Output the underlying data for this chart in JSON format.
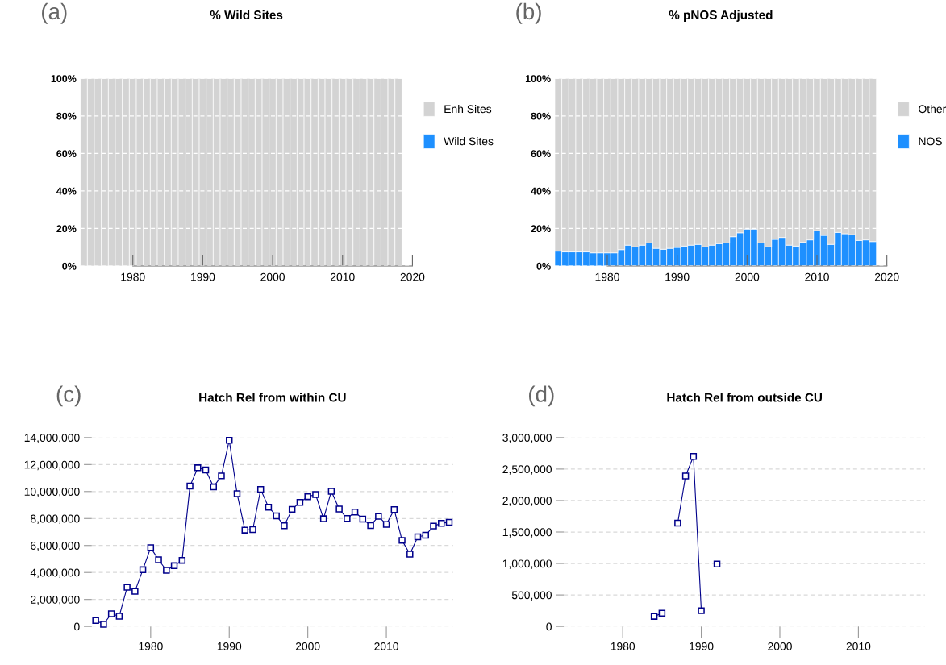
{
  "chart_data": [
    {
      "type": "bar",
      "title": "% Wild Sites",
      "annotations": [
        "(a)"
      ],
      "stacked": true,
      "legend": "right",
      "grid": "y",
      "x": [
        1973,
        1974,
        1975,
        1976,
        1977,
        1978,
        1979,
        1980,
        1981,
        1982,
        1983,
        1984,
        1985,
        1986,
        1987,
        1988,
        1989,
        1990,
        1991,
        1992,
        1993,
        1994,
        1995,
        1996,
        1997,
        1998,
        1999,
        2000,
        2001,
        2002,
        2003,
        2004,
        2005,
        2006,
        2007,
        2008,
        2009,
        2010,
        2011,
        2012,
        2013,
        2014,
        2015,
        2016,
        2017,
        2018
      ],
      "series": [
        {
          "name": "Wild Sites",
          "color": "#1e90ff",
          "values": [
            0,
            0,
            0,
            0,
            0,
            0,
            0,
            0,
            0,
            0,
            0,
            0,
            0,
            0,
            0,
            0,
            0,
            0,
            0,
            0,
            0,
            0,
            0,
            0,
            0,
            0,
            0,
            0,
            0,
            0,
            0,
            0,
            0,
            0,
            0,
            0,
            0,
            0,
            0,
            0,
            0,
            0,
            0,
            0,
            0,
            0
          ]
        },
        {
          "name": "Enh Sites",
          "color": "#d3d3d3",
          "values": [
            100,
            100,
            100,
            100,
            100,
            100,
            100,
            100,
            100,
            100,
            100,
            100,
            100,
            100,
            100,
            100,
            100,
            100,
            100,
            100,
            100,
            100,
            100,
            100,
            100,
            100,
            100,
            100,
            100,
            100,
            100,
            100,
            100,
            100,
            100,
            100,
            100,
            100,
            100,
            100,
            100,
            100,
            100,
            100,
            100,
            100
          ]
        }
      ],
      "xlim": [
        1972.5,
        2020
      ],
      "xticks": [
        1980,
        1990,
        2000,
        2010,
        2020
      ],
      "ylim": [
        0,
        100
      ],
      "yticks": [
        {
          "value": 0,
          "label": "0%"
        },
        {
          "value": 20,
          "label": "20%"
        },
        {
          "value": 40,
          "label": "40%"
        },
        {
          "value": 60,
          "label": "60%"
        },
        {
          "value": 80,
          "label": "80%"
        },
        {
          "value": 100,
          "label": "100%"
        }
      ]
    },
    {
      "type": "bar",
      "title": "% pNOS Adjusted",
      "annotations": [
        "(b)"
      ],
      "stacked": true,
      "legend": "right",
      "grid": "y",
      "x": [
        1973,
        1974,
        1975,
        1976,
        1977,
        1978,
        1979,
        1980,
        1981,
        1982,
        1983,
        1984,
        1985,
        1986,
        1987,
        1988,
        1989,
        1990,
        1991,
        1992,
        1993,
        1994,
        1995,
        1996,
        1997,
        1998,
        1999,
        2000,
        2001,
        2002,
        2003,
        2004,
        2005,
        2006,
        2007,
        2008,
        2009,
        2010,
        2011,
        2012,
        2013,
        2014,
        2015,
        2016,
        2017,
        2018
      ],
      "series": [
        {
          "name": "NOS",
          "color": "#1e90ff",
          "values": [
            7.9,
            7.5,
            7.5,
            7.5,
            7.5,
            7.0,
            7.0,
            7.0,
            7.0,
            8.7,
            11.1,
            10.2,
            11.1,
            12.3,
            9.4,
            8.9,
            9.4,
            9.9,
            10.6,
            11.1,
            11.5,
            10.2,
            11.1,
            11.9,
            12.3,
            15.6,
            17.7,
            19.7,
            19.7,
            12.3,
            10.2,
            14.2,
            15.2,
            11.1,
            10.6,
            12.6,
            13.9,
            18.9,
            16.3,
            11.5,
            17.9,
            17.2,
            16.7,
            13.6,
            13.9,
            13.0
          ]
        },
        {
          "name": "Other",
          "color": "#d3d3d3",
          "values": [
            92.1,
            92.5,
            92.5,
            92.5,
            92.5,
            93.0,
            93.0,
            93.0,
            93.0,
            91.3,
            88.9,
            89.8,
            88.9,
            87.7,
            90.6,
            91.1,
            90.6,
            90.1,
            89.4,
            88.9,
            88.5,
            89.8,
            88.9,
            88.1,
            87.7,
            84.4,
            82.3,
            80.3,
            80.3,
            87.7,
            89.8,
            85.8,
            84.8,
            88.9,
            89.4,
            87.4,
            86.1,
            81.1,
            83.7,
            88.5,
            82.1,
            82.8,
            83.3,
            86.4,
            86.1,
            87.0
          ]
        }
      ],
      "xlim": [
        1972.5,
        2020
      ],
      "xticks": [
        1980,
        1990,
        2000,
        2010,
        2020
      ],
      "ylim": [
        0,
        100
      ],
      "yticks": [
        {
          "value": 0,
          "label": "0%"
        },
        {
          "value": 20,
          "label": "20%"
        },
        {
          "value": 40,
          "label": "40%"
        },
        {
          "value": 60,
          "label": "60%"
        },
        {
          "value": 80,
          "label": "80%"
        },
        {
          "value": 100,
          "label": "100%"
        }
      ]
    },
    {
      "type": "line",
      "title": "Hatch Rel from within CU",
      "annotations": [
        "(c)"
      ],
      "grid": "y",
      "marker": "square",
      "x": [
        1973,
        1974,
        1975,
        1976,
        1977,
        1978,
        1979,
        1980,
        1981,
        1982,
        1983,
        1984,
        1985,
        1986,
        1987,
        1988,
        1989,
        1990,
        1991,
        1992,
        1993,
        1994,
        1995,
        1996,
        1997,
        1998,
        1999,
        2000,
        2001,
        2002,
        2003,
        2004,
        2005,
        2006,
        2007,
        2008,
        2009,
        2010,
        2011,
        2012,
        2013,
        2014,
        2015,
        2016,
        2017,
        2018
      ],
      "series": [
        {
          "color": "#00008b",
          "values": [
            440000,
            160000,
            940000,
            760000,
            2900000,
            2600000,
            4200000,
            5840000,
            4940000,
            4160000,
            4500000,
            4900000,
            10400000,
            11760000,
            11600000,
            10340000,
            11160000,
            13800000,
            9840000,
            7140000,
            7180000,
            10160000,
            8840000,
            8200000,
            7460000,
            8680000,
            9200000,
            9620000,
            9780000,
            7980000,
            10020000,
            8700000,
            8000000,
            8480000,
            7960000,
            7480000,
            8160000,
            7560000,
            8660000,
            6380000,
            5360000,
            6640000,
            6760000,
            7440000,
            7640000,
            7720000
          ]
        }
      ],
      "xlim": [
        1972.5,
        2018.5
      ],
      "xticks": [
        1980,
        1990,
        2000,
        2010
      ],
      "ylim": [
        0,
        14000000
      ],
      "yticks": [
        {
          "value": 0,
          "label": "0"
        },
        {
          "value": 2000000,
          "label": "2,000,000"
        },
        {
          "value": 4000000,
          "label": "4,000,000"
        },
        {
          "value": 6000000,
          "label": "6,000,000"
        },
        {
          "value": 8000000,
          "label": "8,000,000"
        },
        {
          "value": 10000000,
          "label": "10,000,000"
        },
        {
          "value": 12000000,
          "label": "12,000,000"
        },
        {
          "value": 14000000,
          "label": "14,000,000"
        }
      ]
    },
    {
      "type": "line",
      "title": "Hatch Rel from outside CU",
      "annotations": [
        "(d)"
      ],
      "grid": "y",
      "marker": "square",
      "x": [
        1984,
        1985,
        1986,
        1987,
        1988,
        1989,
        1990,
        1991,
        1992
      ],
      "series": [
        {
          "color": "#00008b",
          "values": [
            160000,
            210000,
            null,
            1640000,
            2390000,
            2700000,
            250000,
            null,
            990000
          ]
        }
      ],
      "xlim": [
        1972.5,
        2018.5
      ],
      "xticks": [
        1980,
        1990,
        2000,
        2010
      ],
      "ylim": [
        0,
        3000000
      ],
      "yticks": [
        {
          "value": 0,
          "label": "0"
        },
        {
          "value": 500000,
          "label": "500,000"
        },
        {
          "value": 1000000,
          "label": "1,000,000"
        },
        {
          "value": 1500000,
          "label": "1,500,000"
        },
        {
          "value": 2000000,
          "label": "2,000,000"
        },
        {
          "value": 2500000,
          "label": "2,500,000"
        },
        {
          "value": 3000000,
          "label": "3,000,000"
        }
      ]
    }
  ]
}
